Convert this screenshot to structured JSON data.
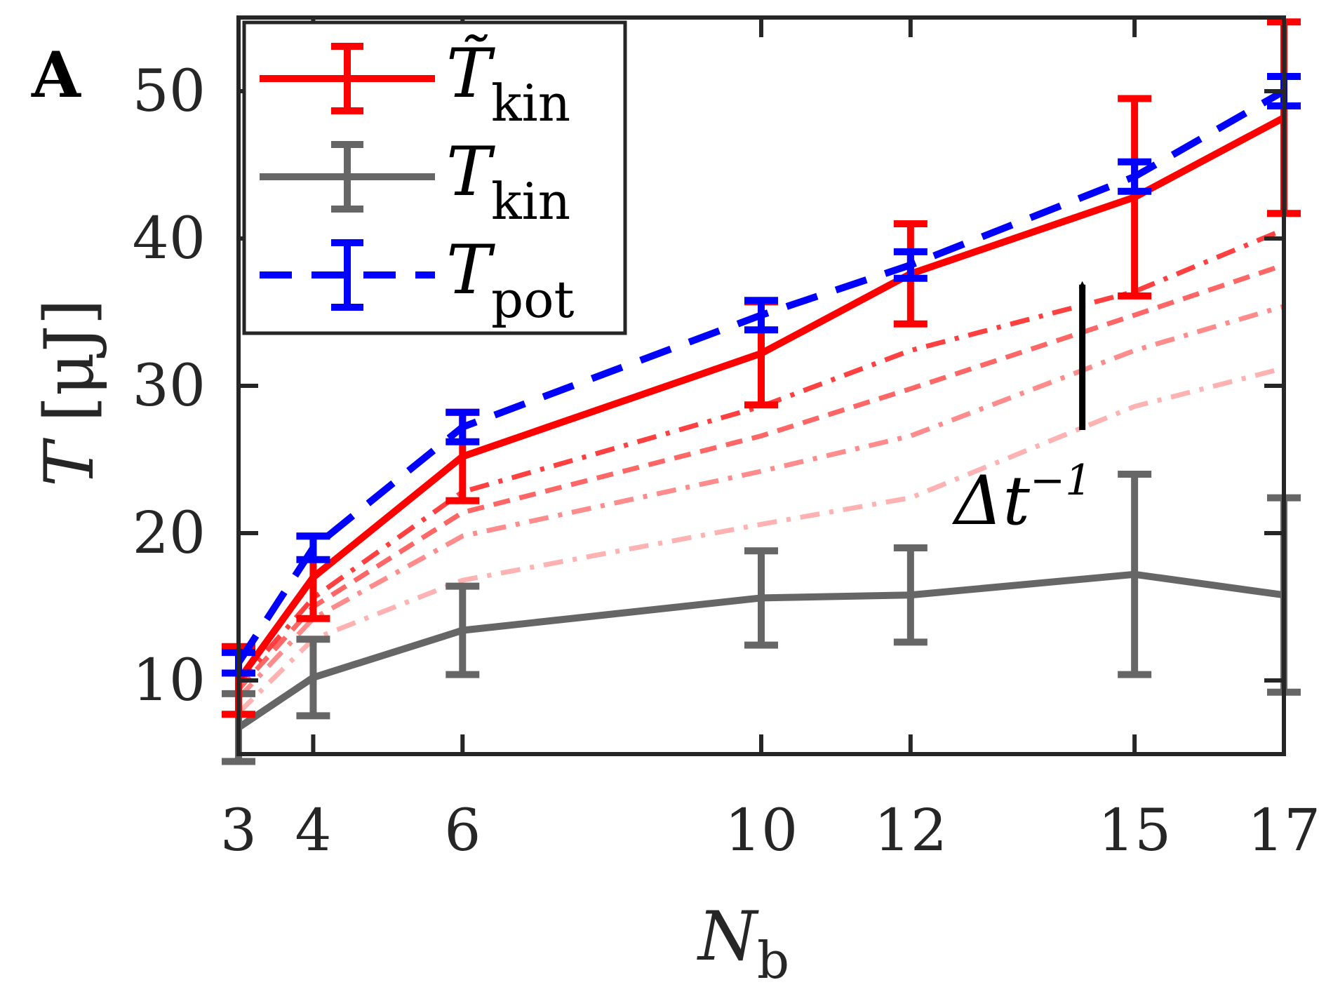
{
  "chart_data": {
    "type": "line",
    "panel_label": "A",
    "xlabel": "N",
    "xlabel_sub": "b",
    "ylabel": "T",
    "ylabel_unit": "[μJ]",
    "xlim": [
      3,
      17
    ],
    "ylim": [
      5,
      55
    ],
    "x_ticks": [
      3,
      4,
      6,
      10,
      12,
      15,
      17
    ],
    "y_ticks": [
      10,
      20,
      30,
      40,
      50
    ],
    "x": [
      3,
      4,
      6,
      10,
      12,
      15,
      17
    ],
    "series": [
      {
        "name": "T̃",
        "sub": "kin",
        "color": "#ff0000",
        "style": "solid",
        "values": [
          10.0,
          17.0,
          25.2,
          32.2,
          37.6,
          42.8,
          48.2
        ],
        "err": [
          2.3,
          2.8,
          3.0,
          3.5,
          3.4,
          6.7,
          6.5
        ]
      },
      {
        "name": "T",
        "sub": "kin",
        "color": "#666666",
        "style": "solid",
        "values": [
          6.8,
          10.2,
          13.4,
          15.6,
          15.8,
          17.2,
          15.8
        ],
        "err": [
          2.3,
          2.6,
          3.0,
          3.2,
          3.2,
          6.8,
          6.6
        ]
      },
      {
        "name": "T",
        "sub": "pot",
        "color": "#0000ff",
        "style": "dashed",
        "values": [
          11.2,
          19.0,
          27.2,
          34.8,
          38.2,
          44.2,
          50.0
        ],
        "err": [
          0.7,
          0.8,
          1.0,
          1.0,
          0.9,
          1.0,
          1.0
        ]
      }
    ],
    "faded_series": [
      {
        "values": [
          9.8,
          15.6,
          22.8,
          28.6,
          32.4,
          36.4,
          40.6
        ],
        "opacity": 0.75,
        "dash": "dashdot"
      },
      {
        "values": [
          9.4,
          15.0,
          21.4,
          26.6,
          29.8,
          34.8,
          38.2
        ],
        "opacity": 0.6,
        "dash": "dashed"
      },
      {
        "values": [
          8.8,
          14.2,
          19.8,
          24.2,
          26.6,
          32.4,
          35.4
        ],
        "opacity": 0.45,
        "dash": "dashdot"
      },
      {
        "values": [
          7.8,
          12.8,
          16.8,
          20.6,
          22.4,
          28.6,
          31.2
        ],
        "opacity": 0.3,
        "dash": "dashdot"
      }
    ],
    "annotation": {
      "text": "Δt",
      "sup": "−1",
      "arrow_from": [
        14.3,
        27.0
      ],
      "arrow_to": [
        14.3,
        38.3
      ]
    },
    "legend_position": "top-left",
    "grid": false
  }
}
